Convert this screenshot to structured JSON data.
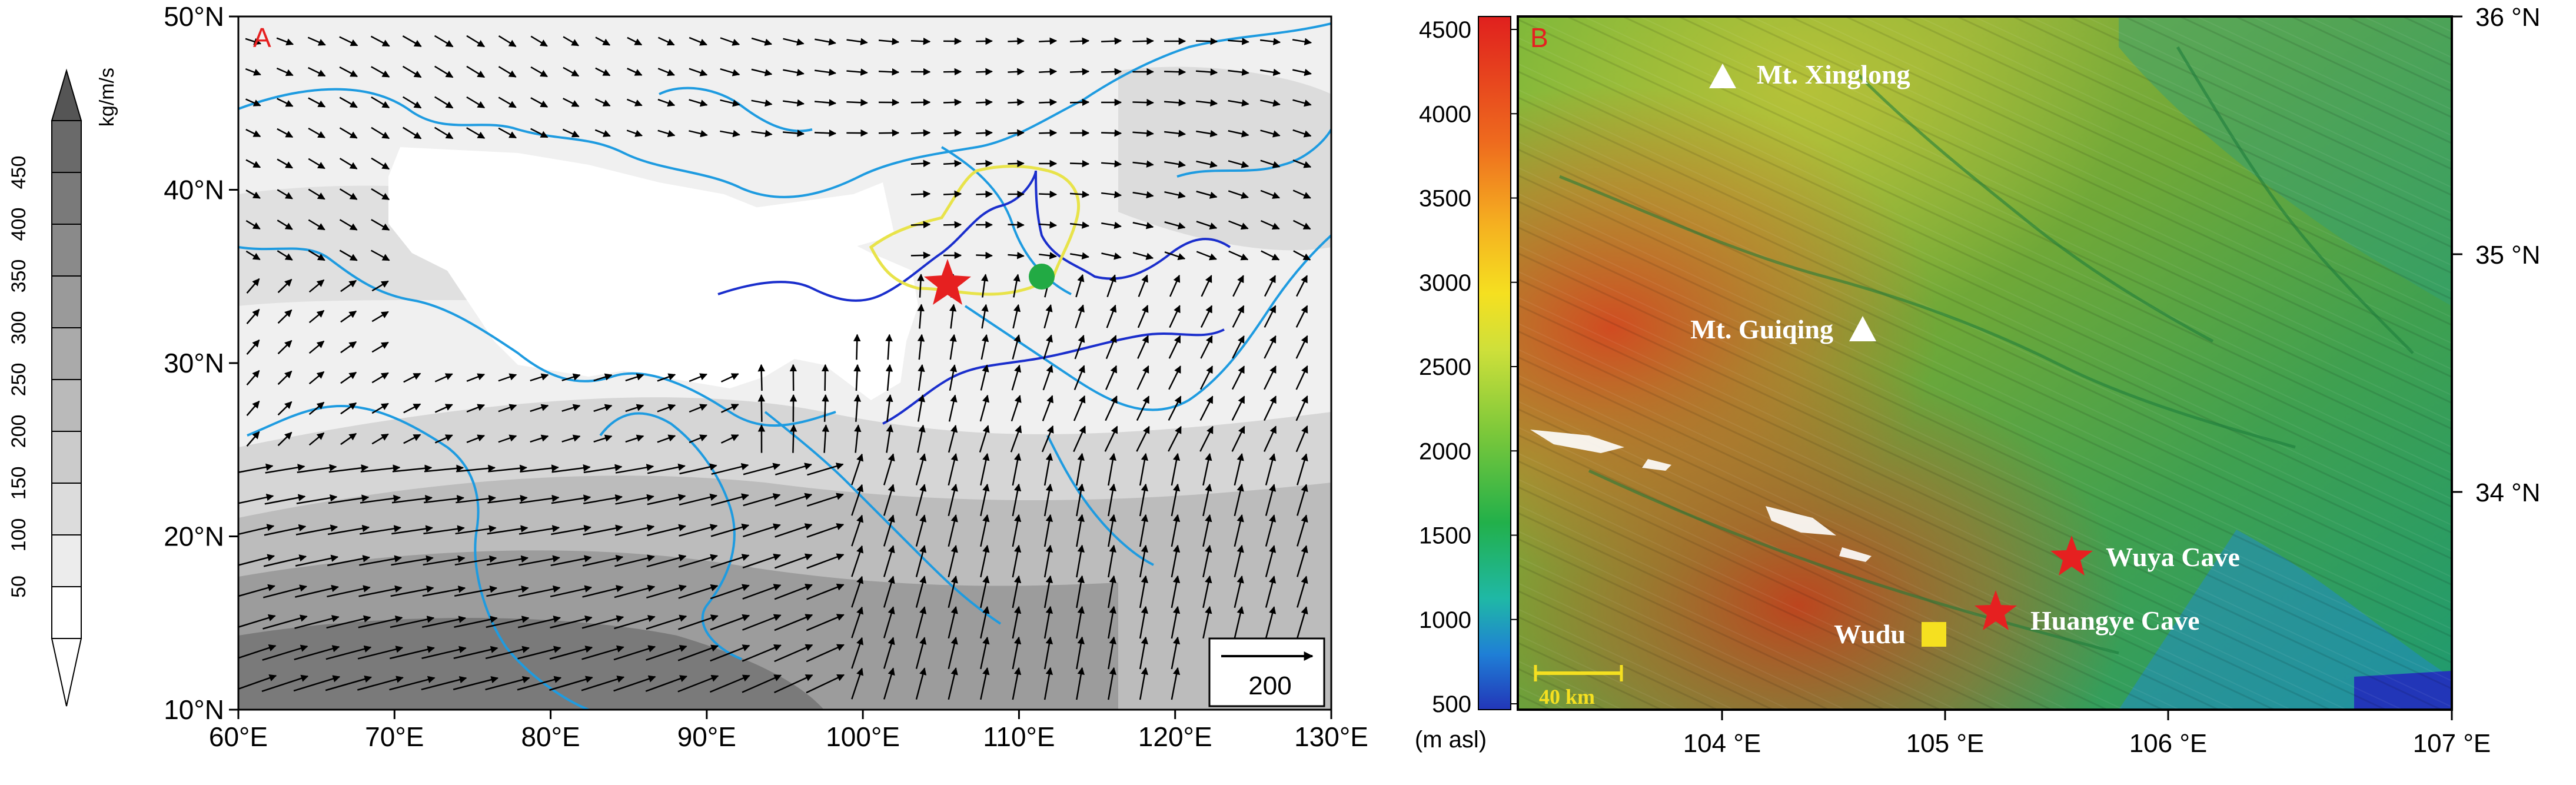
{
  "panel_a": {
    "label": "A",
    "x_ticks": [
      "60°E",
      "70°E",
      "80°E",
      "90°E",
      "100°E",
      "110°E",
      "120°E",
      "130°E"
    ],
    "y_ticks": [
      "10°N",
      "20°N",
      "30°N",
      "40°N",
      "50°N"
    ],
    "reference_vector": "200",
    "colorbar": {
      "unit": "kg/m/s",
      "levels": [
        "50",
        "100",
        "150",
        "200",
        "250",
        "300",
        "350",
        "400",
        "450"
      ],
      "shades": [
        "#ffffff",
        "#ececec",
        "#dcdcdc",
        "#cbcbcb",
        "#bababa",
        "#aaaaaa",
        "#9a9a9a",
        "#8a8a8a",
        "#7a7a7a",
        "#6a6a6a"
      ]
    },
    "colors": {
      "coast": "#1e9be0",
      "river": "#1a2ecc",
      "loess_plateau_outline": "#e8e34a",
      "site_star": "#e62020",
      "site_circle": "#22aa44"
    }
  },
  "panel_b": {
    "label": "B",
    "colorbar": {
      "unit": "(m asl)",
      "ticks": [
        "500",
        "1000",
        "1500",
        "2000",
        "2500",
        "3000",
        "3500",
        "4000",
        "4500"
      ]
    },
    "x_ticks": [
      "104 °E",
      "105 °E",
      "106 °E",
      "107 °E"
    ],
    "y_ticks": [
      "36 °N",
      "35 °N",
      "34 °N"
    ],
    "scale_bar": "40 km",
    "places": {
      "xinglong": "Mt. Xinglong",
      "guiqing": "Mt. Guiqing",
      "wuya": "Wuya Cave",
      "huangye": "Huangye Cave",
      "wudu": "Wudu"
    },
    "colors": {
      "star": "#e62020",
      "square": "#f5e020",
      "triangle": "#ffffff"
    }
  }
}
